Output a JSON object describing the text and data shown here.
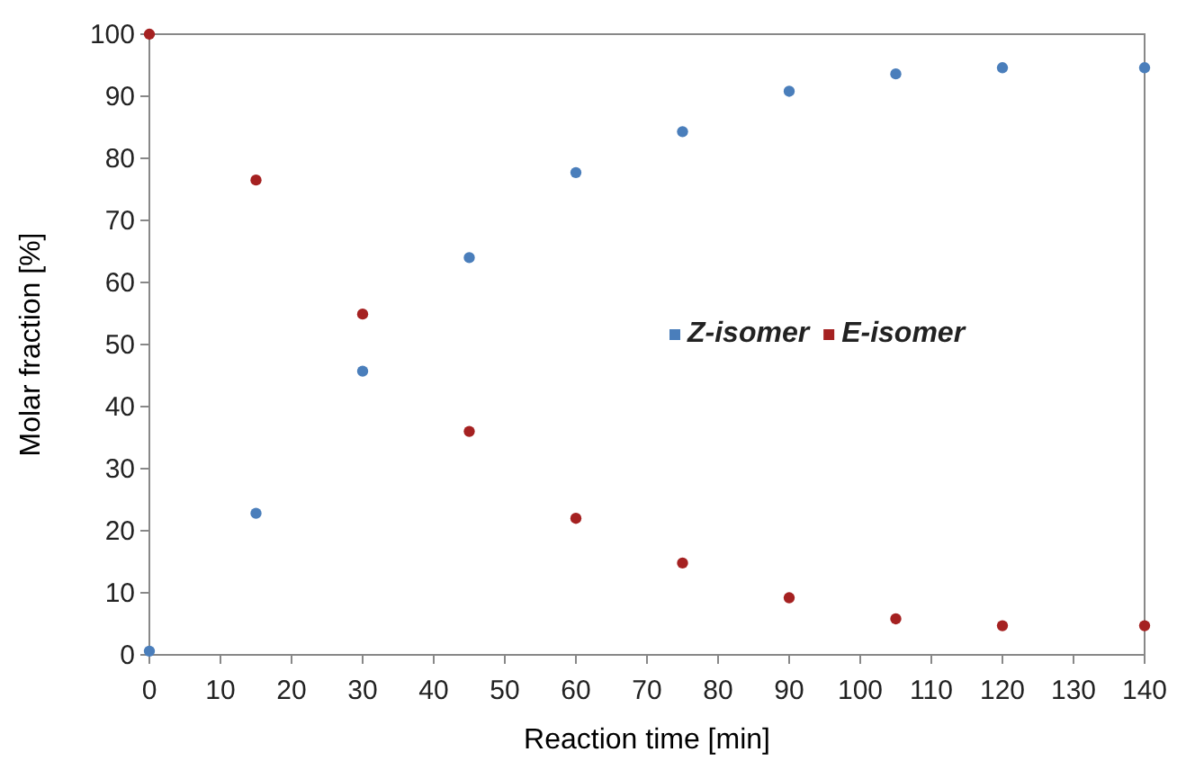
{
  "chart_data": {
    "type": "scatter",
    "xlabel": "Reaction time [min]",
    "ylabel": "Molar fraction [%]",
    "x": [
      0,
      15,
      30,
      45,
      60,
      75,
      90,
      105,
      120,
      140
    ],
    "series": [
      {
        "name": "Z-isomer",
        "color": "#4a7ebb",
        "values": [
          0.6,
          22.8,
          45.7,
          64,
          77.7,
          84.3,
          90.8,
          93.6,
          94.6,
          94.6
        ]
      },
      {
        "name": "E-isomer",
        "color": "#a52121",
        "values": [
          100,
          76.5,
          54.9,
          36,
          22,
          14.8,
          9.2,
          5.8,
          4.7,
          4.7
        ]
      }
    ],
    "xlim": [
      0,
      140
    ],
    "xticks": [
      0,
      10,
      20,
      30,
      40,
      50,
      60,
      70,
      80,
      90,
      100,
      110,
      120,
      130,
      140
    ],
    "ylim": [
      0,
      100
    ],
    "yticks": [
      0,
      10,
      20,
      30,
      40,
      50,
      60,
      70,
      80,
      90,
      100
    ],
    "grid": false,
    "legend": "right",
    "marker": "circle"
  }
}
